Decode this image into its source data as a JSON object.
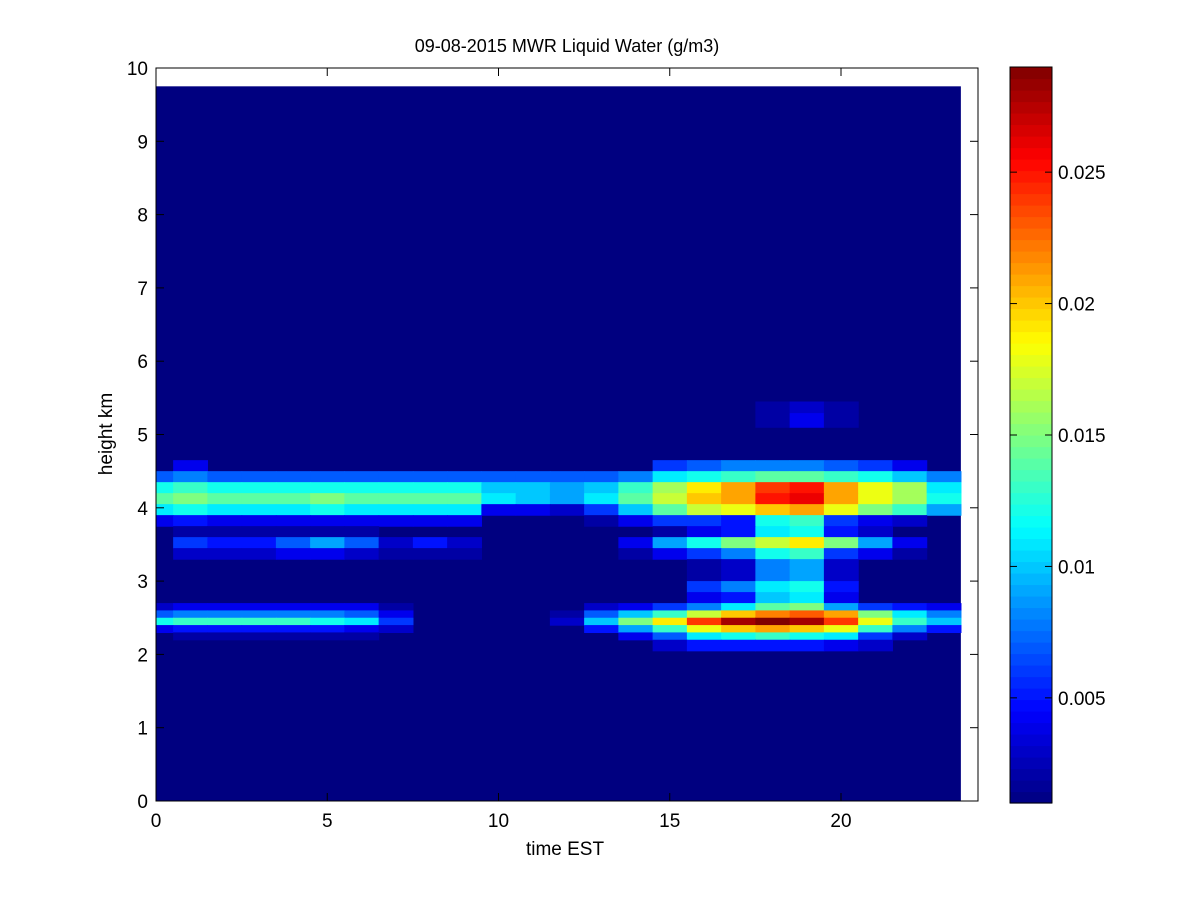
{
  "chart_data": {
    "type": "heatmap",
    "title": "09-08-2015 MWR Liquid Water (g/m3)",
    "xlabel": "time EST",
    "ylabel": "height km",
    "xlim": [
      0,
      24
    ],
    "ylim": [
      0,
      10
    ],
    "x_ticks": [
      "0",
      "5",
      "10",
      "15",
      "20"
    ],
    "y_ticks": [
      "0",
      "1",
      "2",
      "3",
      "4",
      "5",
      "6",
      "7",
      "8",
      "9",
      "10"
    ],
    "colormap": "jet",
    "colorbar": {
      "min": 0.001,
      "max": 0.029,
      "ticks": [
        "0.005",
        "0.01",
        "0.015",
        "0.02",
        "0.025"
      ]
    },
    "data_extent": {
      "x": [
        0,
        23.5
      ],
      "y": [
        0,
        9.75
      ]
    },
    "background_value": 0.001,
    "x_cells": [
      0,
      0.5,
      1.5,
      2.5,
      3.5,
      4.5,
      5.5,
      6.5,
      7.5,
      8.5,
      9.5,
      10.5,
      11.5,
      12.5,
      13.5,
      14.5,
      15.5,
      16.5,
      17.5,
      18.5,
      19.5,
      20.5,
      21.5,
      22.5,
      23.5
    ],
    "rows": [
      {
        "y": [
          5.1,
          5.3
        ],
        "values": [
          0.001,
          0.001,
          0.001,
          0.001,
          0.001,
          0.001,
          0.001,
          0.001,
          0.001,
          0.001,
          0.001,
          0.001,
          0.001,
          0.001,
          0.001,
          0.001,
          0.001,
          0.001,
          0.002,
          0.004,
          0.002,
          0.001,
          0.001,
          0.001
        ]
      },
      {
        "y": [
          5.3,
          5.45
        ],
        "values": [
          0.001,
          0.001,
          0.001,
          0.001,
          0.001,
          0.001,
          0.001,
          0.001,
          0.001,
          0.001,
          0.001,
          0.001,
          0.001,
          0.001,
          0.001,
          0.001,
          0.001,
          0.001,
          0.002,
          0.003,
          0.002,
          0.001,
          0.001,
          0.001
        ]
      },
      {
        "y": [
          4.5,
          4.65
        ],
        "values": [
          0.001,
          0.004,
          0.001,
          0.001,
          0.001,
          0.001,
          0.001,
          0.001,
          0.001,
          0.001,
          0.001,
          0.001,
          0.001,
          0.001,
          0.001,
          0.006,
          0.007,
          0.008,
          0.008,
          0.008,
          0.007,
          0.006,
          0.004,
          0.001
        ]
      },
      {
        "y": [
          4.35,
          4.5
        ],
        "values": [
          0.007,
          0.008,
          0.007,
          0.007,
          0.007,
          0.007,
          0.007,
          0.007,
          0.007,
          0.007,
          0.007,
          0.007,
          0.007,
          0.007,
          0.008,
          0.011,
          0.012,
          0.013,
          0.014,
          0.014,
          0.013,
          0.012,
          0.01,
          0.008
        ]
      },
      {
        "y": [
          4.2,
          4.35
        ],
        "values": [
          0.012,
          0.013,
          0.012,
          0.012,
          0.012,
          0.012,
          0.012,
          0.012,
          0.012,
          0.012,
          0.01,
          0.01,
          0.009,
          0.01,
          0.013,
          0.016,
          0.019,
          0.021,
          0.024,
          0.025,
          0.021,
          0.018,
          0.016,
          0.011
        ]
      },
      {
        "y": [
          4.05,
          4.2
        ],
        "values": [
          0.014,
          0.015,
          0.014,
          0.014,
          0.014,
          0.015,
          0.014,
          0.014,
          0.014,
          0.014,
          0.011,
          0.01,
          0.009,
          0.011,
          0.014,
          0.017,
          0.02,
          0.021,
          0.025,
          0.026,
          0.021,
          0.018,
          0.016,
          0.012
        ]
      },
      {
        "y": [
          3.9,
          4.05
        ],
        "values": [
          0.011,
          0.012,
          0.011,
          0.011,
          0.011,
          0.012,
          0.011,
          0.011,
          0.011,
          0.011,
          0.004,
          0.004,
          0.003,
          0.006,
          0.01,
          0.014,
          0.017,
          0.018,
          0.02,
          0.021,
          0.018,
          0.015,
          0.013,
          0.009
        ]
      },
      {
        "y": [
          3.75,
          3.9
        ],
        "values": [
          0.004,
          0.005,
          0.004,
          0.004,
          0.004,
          0.004,
          0.004,
          0.004,
          0.004,
          0.004,
          0.001,
          0.001,
          0.001,
          0.002,
          0.004,
          0.006,
          0.006,
          0.005,
          0.012,
          0.013,
          0.006,
          0.004,
          0.003,
          0.001
        ]
      },
      {
        "y": [
          3.6,
          3.75
        ],
        "values": [
          0.001,
          0.002,
          0.002,
          0.002,
          0.002,
          0.002,
          0.002,
          0.001,
          0.001,
          0.001,
          0.001,
          0.001,
          0.001,
          0.001,
          0.001,
          0.002,
          0.004,
          0.005,
          0.011,
          0.012,
          0.005,
          0.003,
          0.001,
          0.001
        ]
      },
      {
        "y": [
          3.45,
          3.6
        ],
        "values": [
          0.001,
          0.006,
          0.005,
          0.005,
          0.007,
          0.009,
          0.007,
          0.003,
          0.005,
          0.003,
          0.001,
          0.001,
          0.001,
          0.001,
          0.004,
          0.009,
          0.012,
          0.015,
          0.017,
          0.019,
          0.015,
          0.009,
          0.004,
          0.001
        ]
      },
      {
        "y": [
          3.3,
          3.45
        ],
        "values": [
          0.001,
          0.003,
          0.003,
          0.003,
          0.004,
          0.004,
          0.003,
          0.002,
          0.002,
          0.002,
          0.001,
          0.001,
          0.001,
          0.001,
          0.002,
          0.004,
          0.006,
          0.008,
          0.012,
          0.013,
          0.006,
          0.004,
          0.002,
          0.001
        ]
      },
      {
        "y": [
          3.0,
          3.3
        ],
        "values": [
          0.001,
          0.001,
          0.001,
          0.001,
          0.001,
          0.001,
          0.001,
          0.001,
          0.001,
          0.001,
          0.001,
          0.001,
          0.001,
          0.001,
          0.001,
          0.001,
          0.002,
          0.003,
          0.008,
          0.009,
          0.003,
          0.001,
          0.001,
          0.001
        ]
      },
      {
        "y": [
          2.85,
          3.0
        ],
        "values": [
          0.001,
          0.001,
          0.001,
          0.001,
          0.001,
          0.001,
          0.001,
          0.001,
          0.001,
          0.001,
          0.001,
          0.001,
          0.001,
          0.001,
          0.001,
          0.001,
          0.006,
          0.008,
          0.011,
          0.012,
          0.005,
          0.001,
          0.001,
          0.001
        ]
      },
      {
        "y": [
          2.7,
          2.85
        ],
        "values": [
          0.001,
          0.001,
          0.001,
          0.001,
          0.001,
          0.001,
          0.001,
          0.001,
          0.001,
          0.001,
          0.001,
          0.001,
          0.001,
          0.001,
          0.001,
          0.001,
          0.004,
          0.005,
          0.01,
          0.011,
          0.004,
          0.001,
          0.001,
          0.001
        ]
      },
      {
        "y": [
          2.6,
          2.7
        ],
        "values": [
          0.003,
          0.004,
          0.004,
          0.004,
          0.004,
          0.004,
          0.004,
          0.002,
          0.001,
          0.001,
          0.001,
          0.001,
          0.001,
          0.003,
          0.004,
          0.006,
          0.008,
          0.011,
          0.014,
          0.015,
          0.009,
          0.006,
          0.005,
          0.004
        ]
      },
      {
        "y": [
          2.5,
          2.6
        ],
        "values": [
          0.007,
          0.008,
          0.008,
          0.008,
          0.008,
          0.008,
          0.007,
          0.004,
          0.001,
          0.001,
          0.001,
          0.001,
          0.002,
          0.007,
          0.01,
          0.013,
          0.017,
          0.02,
          0.022,
          0.023,
          0.021,
          0.015,
          0.011,
          0.008
        ]
      },
      {
        "y": [
          2.4,
          2.5
        ],
        "values": [
          0.012,
          0.013,
          0.013,
          0.013,
          0.013,
          0.012,
          0.011,
          0.006,
          0.001,
          0.001,
          0.001,
          0.001,
          0.003,
          0.01,
          0.015,
          0.019,
          0.024,
          0.028,
          0.029,
          0.028,
          0.024,
          0.018,
          0.013,
          0.01
        ]
      },
      {
        "y": [
          2.3,
          2.4
        ],
        "values": [
          0.004,
          0.005,
          0.005,
          0.005,
          0.005,
          0.005,
          0.004,
          0.003,
          0.001,
          0.001,
          0.001,
          0.001,
          0.001,
          0.005,
          0.009,
          0.013,
          0.018,
          0.02,
          0.021,
          0.02,
          0.018,
          0.013,
          0.008,
          0.005
        ]
      },
      {
        "y": [
          2.2,
          2.3
        ],
        "values": [
          0.001,
          0.002,
          0.002,
          0.002,
          0.002,
          0.002,
          0.002,
          0.001,
          0.001,
          0.001,
          0.001,
          0.001,
          0.001,
          0.001,
          0.004,
          0.007,
          0.011,
          0.012,
          0.013,
          0.012,
          0.011,
          0.006,
          0.003,
          0.001
        ]
      },
      {
        "y": [
          2.05,
          2.2
        ],
        "values": [
          0.001,
          0.001,
          0.001,
          0.001,
          0.001,
          0.001,
          0.001,
          0.001,
          0.001,
          0.001,
          0.001,
          0.001,
          0.001,
          0.001,
          0.001,
          0.003,
          0.005,
          0.005,
          0.005,
          0.005,
          0.004,
          0.003,
          0.001,
          0.001
        ]
      }
    ]
  }
}
